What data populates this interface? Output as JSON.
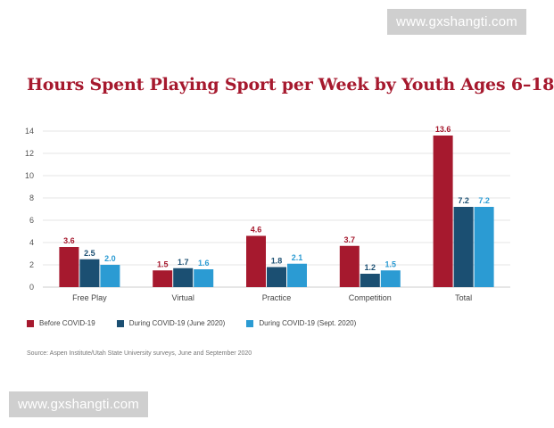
{
  "watermark": {
    "top": "www.gxshangti.com",
    "bottom": "www.gxshangti.com"
  },
  "title": "Hours Spent Playing Sport per Week by Youth Ages 6–18",
  "source": "Source: Aspen Institute/Utah State University surveys, June and September 2020",
  "chart_data": {
    "type": "bar",
    "title": "Hours Spent Playing Sport per Week by Youth Ages 6–18",
    "xlabel": "",
    "ylabel": "",
    "ylim": [
      0,
      14
    ],
    "yticks": [
      0,
      2,
      4,
      6,
      8,
      10,
      12,
      14
    ],
    "grid": true,
    "legend_position": "bottom-left",
    "categories": [
      "Free Play",
      "Virtual",
      "Practice",
      "Competition",
      "Total"
    ],
    "series": [
      {
        "name": "Before COVID-19",
        "color": "#a6192e",
        "values": [
          3.6,
          1.5,
          4.6,
          3.7,
          13.6
        ],
        "labels": [
          "3.6",
          "1.5",
          "4.6",
          "3.7",
          "13.6"
        ]
      },
      {
        "name": "During COVID-19 (June 2020)",
        "color": "#1b4f72",
        "values": [
          2.5,
          1.7,
          1.8,
          1.2,
          7.2
        ],
        "labels": [
          "2.5",
          "1.7",
          "1.8",
          "1.2",
          "7.2"
        ]
      },
      {
        "name": "During COVID-19 (Sept. 2020)",
        "color": "#2b9bd3",
        "values": [
          2.0,
          1.6,
          2.1,
          1.5,
          7.2
        ],
        "labels": [
          "2.0",
          "1.6",
          "2.1",
          "1.5",
          "7.2"
        ]
      }
    ]
  }
}
